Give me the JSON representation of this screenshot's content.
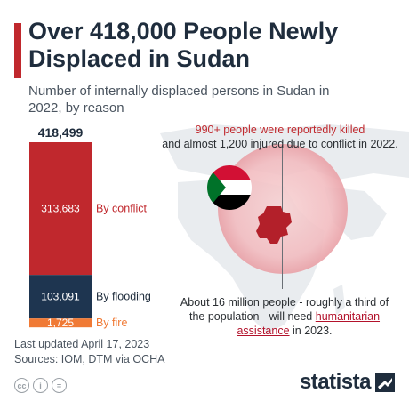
{
  "header": {
    "title": "Over 418,000 People Newly Displaced in Sudan",
    "subtitle": "Number of internally displaced persons in Sudan in 2022, by reason"
  },
  "colors": {
    "conflict": "#c0282d",
    "flooding": "#1e3550",
    "fire": "#f07a35",
    "accent": "#c0282d",
    "text_dark": "#1f2d3d"
  },
  "chart_data": {
    "type": "bar",
    "stacked": true,
    "total": 418499,
    "total_label": "418,499",
    "categories": [
      "By conflict",
      "By flooding",
      "By fire"
    ],
    "values": [
      313683,
      103091,
      1725
    ],
    "value_labels": [
      "313,683",
      "103,091",
      "1,725"
    ],
    "series": [
      {
        "name": "By conflict",
        "value": 313683,
        "color": "#c0282d"
      },
      {
        "name": "By flooding",
        "value": 103091,
        "color": "#1e3550"
      },
      {
        "name": "By fire",
        "value": 1725,
        "color": "#f07a35"
      }
    ]
  },
  "annotations": {
    "killed_highlight": "990+ people were reportedly killed",
    "killed_rest": "and almost 1,200 injured due to conflict in 2022.",
    "need_part1": "About 16 million people - roughly a third of the population - will need",
    "need_highlight": "humanitarian assistance",
    "need_part2": "in 2023."
  },
  "icons": {
    "flag": "sudan-flag-icon",
    "country_map": "sudan-map-icon",
    "license": [
      "cc-icon",
      "by-icon",
      "nd-icon"
    ]
  },
  "license_glyphs": [
    "cc",
    "i",
    "="
  ],
  "footer": {
    "updated": "Last updated April 17, 2023",
    "sources": "Sources: IOM, DTM via OCHA",
    "brand": "statista"
  }
}
